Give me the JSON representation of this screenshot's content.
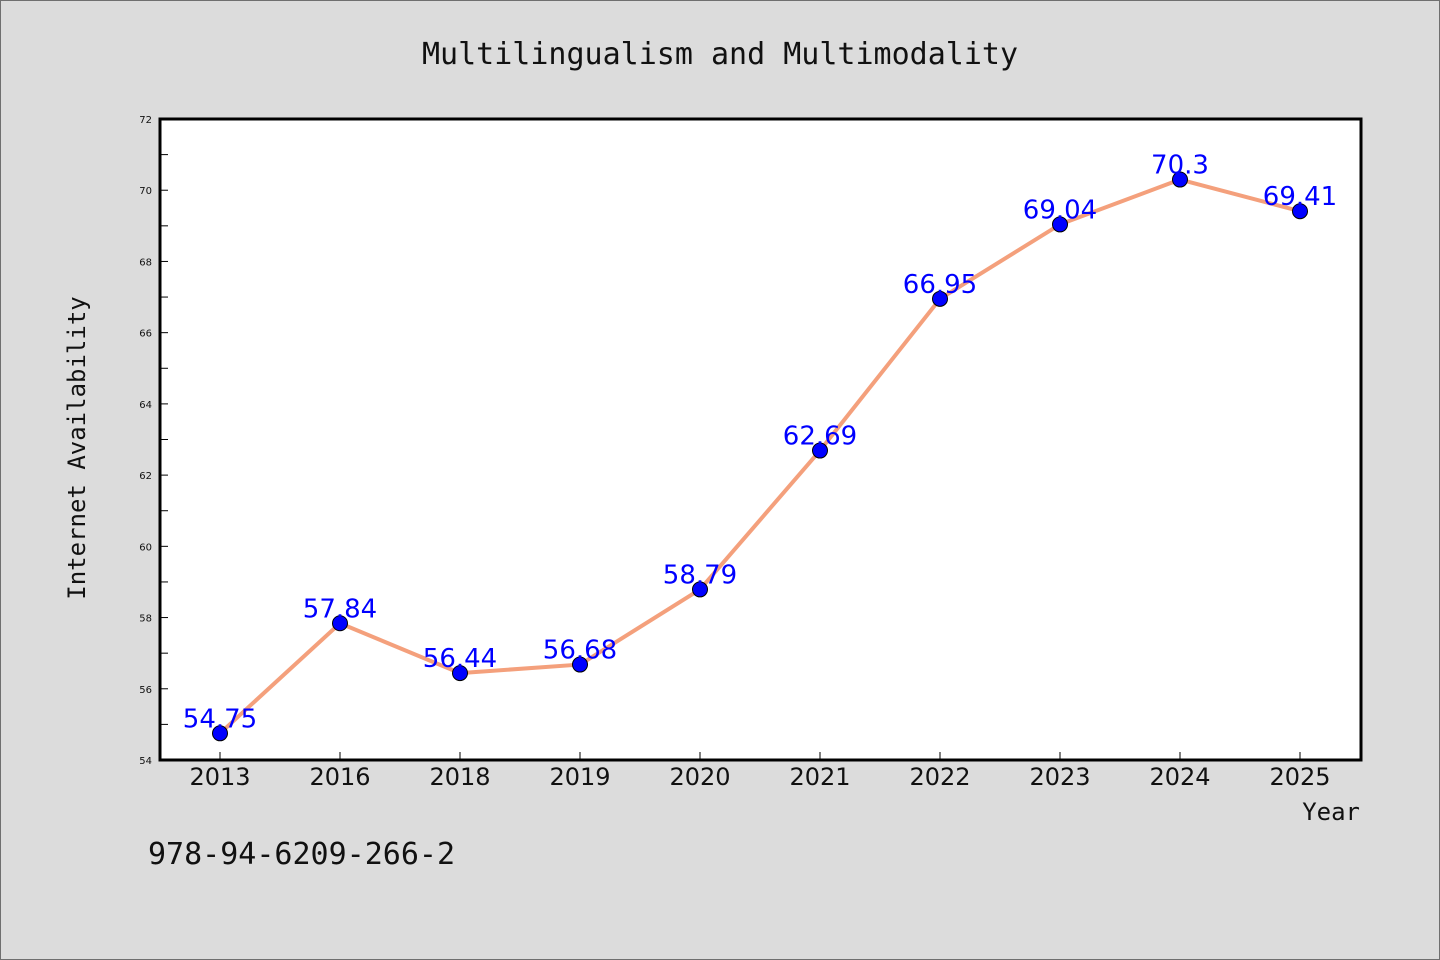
{
  "chart_data": {
    "type": "line",
    "title": "Multilingualism and Multimodality",
    "xlabel": "Year",
    "ylabel": "Internet Availability",
    "categories": [
      "2013",
      "2016",
      "2018",
      "2019",
      "2020",
      "2021",
      "2022",
      "2023",
      "2024",
      "2025"
    ],
    "series": [
      {
        "values": [
          54.75,
          57.84,
          56.44,
          56.68,
          58.79,
          62.69,
          66.95,
          69.04,
          70.3,
          69.41
        ],
        "data_labels": [
          "54.75",
          "57.84",
          "56.44",
          "56.68",
          "58.79",
          "62.69",
          "66.95",
          "69.04",
          "70.3",
          "69.41"
        ],
        "line_color": "#f4a07c",
        "marker_color": "#0000ff"
      }
    ],
    "ylim": [
      54,
      72
    ],
    "yticks": [
      "54",
      "56",
      "58",
      "60",
      "62",
      "64",
      "66",
      "68",
      "70",
      "72"
    ],
    "grid": false,
    "label_color": "#0000ff"
  },
  "caption": "978-94-6209-266-2"
}
